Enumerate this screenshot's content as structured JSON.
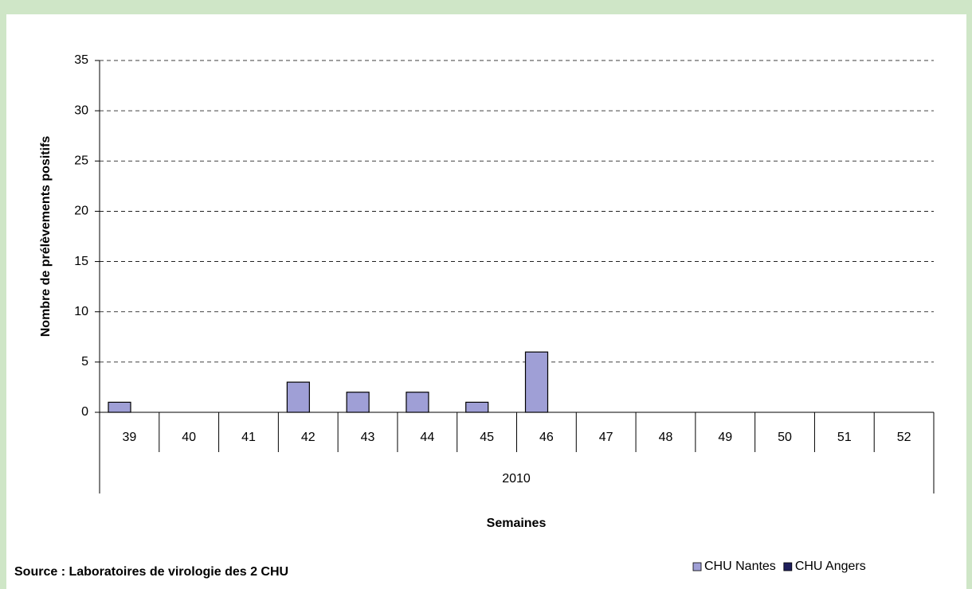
{
  "chart_data": {
    "type": "bar",
    "y_label": "Nombre de prélèvements positifs",
    "x_label": "Semaines",
    "group_label": "2010",
    "source": "Source : Laboratoires de virologie des 2 CHU",
    "categories": [
      "39",
      "40",
      "41",
      "42",
      "43",
      "44",
      "45",
      "46",
      "47",
      "48",
      "49",
      "50",
      "51",
      "52"
    ],
    "series": [
      {
        "name": "CHU Nantes",
        "color": "#9f9fd6",
        "values": [
          1,
          0,
          0,
          3,
          2,
          2,
          1,
          6,
          0,
          0,
          0,
          0,
          0,
          0
        ]
      },
      {
        "name": "CHU Angers",
        "color": "#1f1f5c",
        "values": [
          0,
          0,
          0,
          0,
          0,
          0,
          0,
          0,
          0,
          0,
          0,
          0,
          0,
          0
        ]
      }
    ],
    "ylim": [
      0,
      35
    ],
    "yticks": [
      0,
      5,
      10,
      15,
      20,
      25,
      30,
      35
    ],
    "grid": true,
    "legend": "bottom-right"
  }
}
